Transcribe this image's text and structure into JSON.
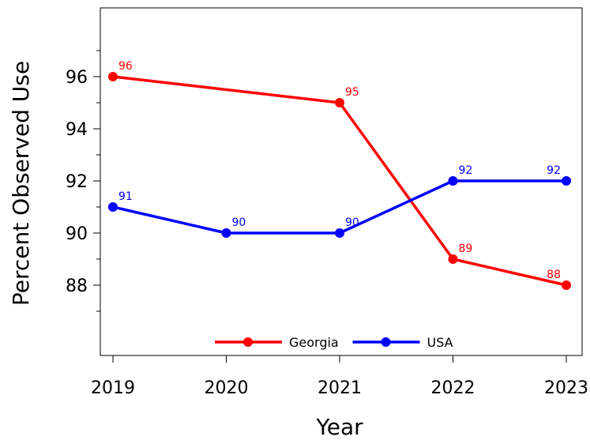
{
  "chart_data": {
    "type": "line",
    "x": [
      "2019",
      "2020",
      "2021",
      "2022",
      "2023"
    ],
    "series": [
      {
        "name": "Georgia",
        "color": "#ff0000",
        "points": [
          {
            "x": "2019",
            "y": 96
          },
          {
            "x": "2021",
            "y": 95
          },
          {
            "x": "2022",
            "y": 89
          },
          {
            "x": "2023",
            "y": 88
          }
        ]
      },
      {
        "name": "USA",
        "color": "#0000ff",
        "points": [
          {
            "x": "2019",
            "y": 91
          },
          {
            "x": "2020",
            "y": 90
          },
          {
            "x": "2021",
            "y": 90
          },
          {
            "x": "2022",
            "y": 92
          },
          {
            "x": "2023",
            "y": 92
          }
        ]
      }
    ],
    "xlabel": "Year",
    "ylabel": "Percent Observed Use",
    "ylim": [
      85.9,
      98.9
    ],
    "yticks": [
      88,
      90,
      92,
      94,
      96
    ],
    "xticks": [
      "2019",
      "2020",
      "2021",
      "2022",
      "2023"
    ],
    "grid": false,
    "legend_position": "bottom-center",
    "data_labels": true
  }
}
